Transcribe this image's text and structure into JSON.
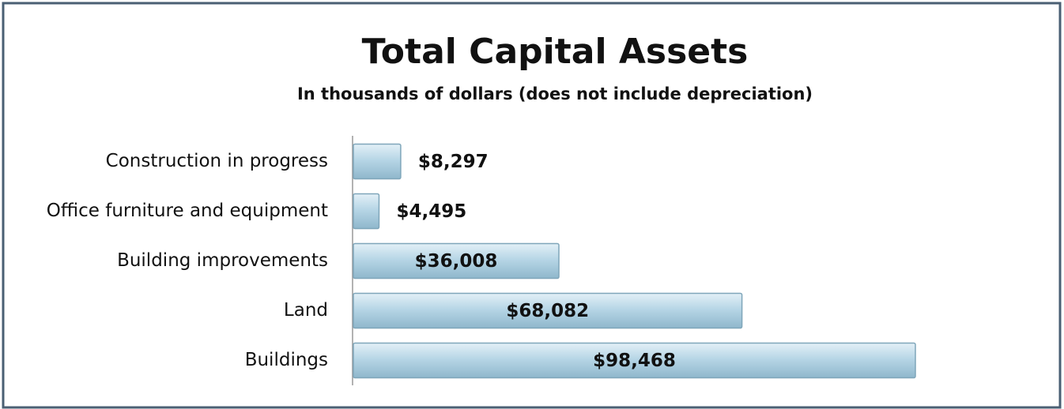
{
  "chart_data": {
    "type": "bar",
    "orientation": "horizontal",
    "title": "Total Capital Assets",
    "subtitle": "In thousands of dollars (does not include depreciation)",
    "categories": [
      "Construction in progress",
      "Office furniture and equipment",
      "Building improvements",
      "Land",
      "Buildings"
    ],
    "values": [
      8297,
      4495,
      36008,
      68082,
      98468
    ],
    "value_labels": [
      "$8,297",
      "$4,495",
      "$36,008",
      "$68,082",
      "$98,468"
    ],
    "color": "#b7d6e6"
  }
}
